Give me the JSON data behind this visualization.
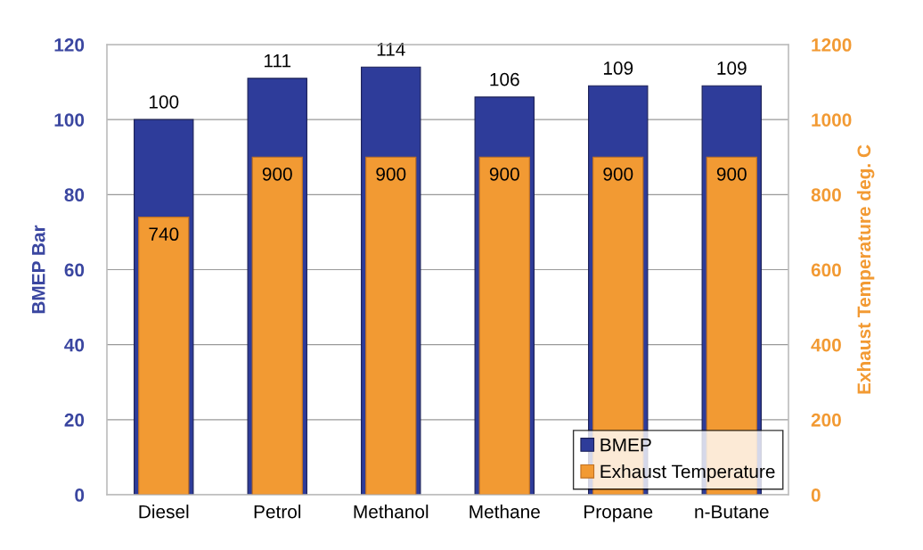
{
  "chart_data": {
    "type": "bar",
    "ylabel": "BMEP Bar",
    "y2label": "Exhaust Temperature deg. C",
    "categories": [
      "Diesel",
      "Petrol",
      "Methanol",
      "Methane",
      "Propane",
      "n-Butane"
    ],
    "series": [
      {
        "name": "BMEP",
        "color": "#2e3c9a",
        "values": [
          100,
          111,
          114,
          106,
          109,
          109
        ]
      },
      {
        "name": "Exhaust Temperature",
        "color": "#f29a33",
        "axis": "y2",
        "values": [
          740,
          900,
          900,
          900,
          900,
          900
        ]
      }
    ],
    "ylim": [
      0,
      120
    ],
    "yticks": [
      0,
      20,
      40,
      60,
      80,
      100,
      120
    ],
    "y2lim": [
      0,
      1200
    ],
    "y2ticks": [
      0,
      200,
      400,
      600,
      800,
      1000,
      1200
    ],
    "data_labels": true,
    "grid": "y",
    "legend": "bottom right"
  }
}
